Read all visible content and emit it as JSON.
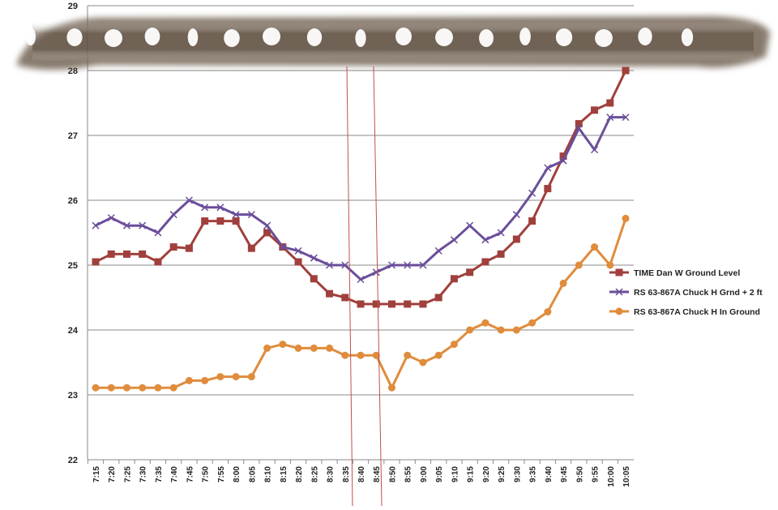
{
  "chart_data": {
    "type": "line",
    "title": "",
    "xlabel": "",
    "ylabel": "",
    "ylim": [
      22,
      29
    ],
    "yticks": [
      22,
      23,
      24,
      25,
      26,
      27,
      28,
      29
    ],
    "grid": true,
    "legend_position": "right",
    "categories": [
      "7:15",
      "7:20",
      "7:25",
      "7:30",
      "7:35",
      "7:40",
      "7:45",
      "7:50",
      "7:55",
      "8:00",
      "8:05",
      "8:10",
      "8:15",
      "8:20",
      "8:25",
      "8:30",
      "8:35",
      "8:40",
      "8:45",
      "8:50",
      "8:55",
      "9:00",
      "9:05",
      "9:10",
      "9:15",
      "9:20",
      "9:25",
      "9:30",
      "9:35",
      "9:40",
      "9:45",
      "9:50",
      "9:55",
      "10:00",
      "10:05"
    ],
    "series": [
      {
        "name": "TIME Dan W Ground Level",
        "color": "#a0403c",
        "marker": "square",
        "values": [
          25.05,
          25.17,
          25.17,
          25.17,
          25.05,
          25.28,
          25.26,
          25.68,
          25.68,
          25.68,
          25.26,
          25.5,
          25.28,
          25.05,
          24.79,
          24.56,
          24.5,
          24.4,
          24.4,
          24.4,
          24.4,
          24.4,
          24.5,
          24.79,
          24.89,
          25.05,
          25.17,
          25.4,
          25.68,
          26.18,
          26.68,
          27.18,
          27.39,
          27.5,
          28.0
        ]
      },
      {
        "name": "RS 63-867A Chuck H Grnd + 2 ft",
        "color": "#6a4e9a",
        "marker": "x",
        "values": [
          25.61,
          25.73,
          25.61,
          25.61,
          25.5,
          25.78,
          26.0,
          25.89,
          25.89,
          25.78,
          25.78,
          25.61,
          25.28,
          25.22,
          25.11,
          25.0,
          25.0,
          24.78,
          24.89,
          25.0,
          25.0,
          25.0,
          25.22,
          25.39,
          25.61,
          25.39,
          25.5,
          25.78,
          26.11,
          26.5,
          26.61,
          27.11,
          26.78,
          27.28,
          27.28
        ]
      },
      {
        "name": "RS 63-867A Chuck H In Ground",
        "color": "#e08c3c",
        "marker": "circle",
        "values": [
          23.11,
          23.11,
          23.11,
          23.11,
          23.11,
          23.11,
          23.22,
          23.22,
          23.28,
          23.28,
          23.28,
          23.72,
          23.78,
          23.72,
          23.72,
          23.72,
          23.61,
          23.61,
          23.61,
          23.11,
          23.61,
          23.5,
          23.61,
          23.78,
          24.0,
          24.11,
          24.0,
          24.0,
          24.11,
          24.28,
          24.72,
          25.0,
          25.28,
          25.0,
          25.72
        ]
      }
    ]
  },
  "overlay": {
    "film_strip_color": "#6b5a48",
    "cursor_line_color": "#c0504d"
  }
}
